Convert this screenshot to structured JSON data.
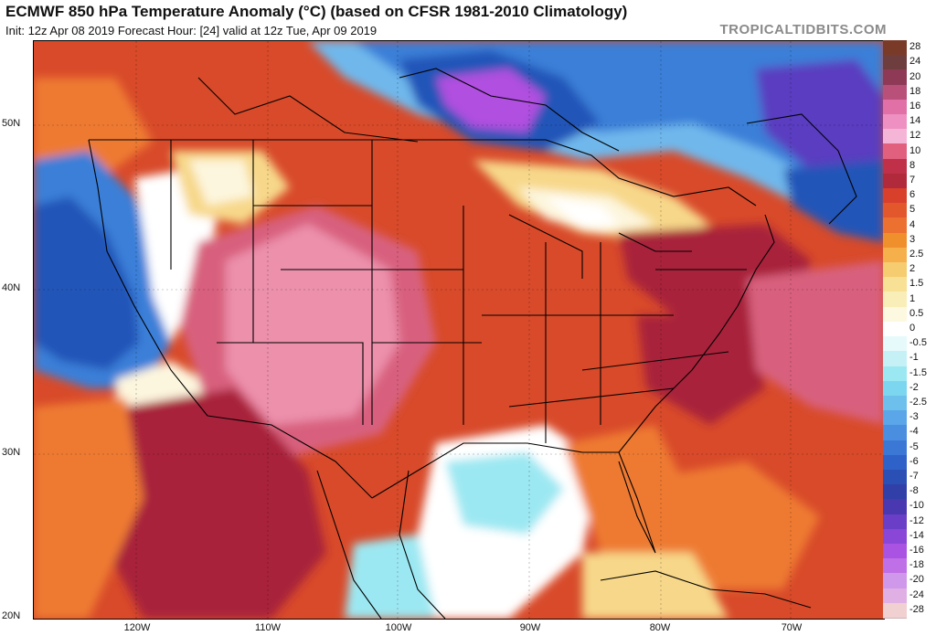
{
  "header": {
    "title": "ECMWF 850 hPa Temperature Anomaly (°C) (based on CFSR 1981-2010 Climatology)",
    "subtitle": "Init: 12z Apr 08 2019   Forecast Hour: [24]   valid at 12z Tue, Apr 09 2019",
    "watermark": "TROPICALTIDBITS.COM"
  },
  "map": {
    "latitude_labels": [
      "50N",
      "40N",
      "30N",
      "20N"
    ],
    "longitude_labels": [
      "120W",
      "110W",
      "100W",
      "90W",
      "80W",
      "70W"
    ],
    "palette": {
      "background_warm": "#d84a2a",
      "deep_red": "#a8203a",
      "hot_pink": "#d8607e",
      "light_pink": "#ec90ac",
      "orange": "#ee7a30",
      "yellow": "#f7d88a",
      "pale": "#fdf6de",
      "white": "#ffffff",
      "light_cyan": "#9ce8f2",
      "light_blue": "#6fb8ec",
      "mid_blue": "#3b7fd8",
      "deep_blue": "#2355b8",
      "purple": "#5a3ec0",
      "violet": "#b050e0",
      "borders": "#000000"
    }
  },
  "colorbar": {
    "labels": [
      "28",
      "24",
      "20",
      "18",
      "16",
      "14",
      "12",
      "10",
      "8",
      "7",
      "6",
      "5",
      "4",
      "3",
      "2.5",
      "2",
      "1.5",
      "1",
      "0.5",
      "0",
      "-0.5",
      "-1",
      "-1.5",
      "-2",
      "-2.5",
      "-3",
      "-4",
      "-5",
      "-6",
      "-7",
      "-8",
      "-10",
      "-12",
      "-14",
      "-16",
      "-18",
      "-20",
      "-24",
      "-28"
    ],
    "colors": [
      "#7a3a28",
      "#6e3e3e",
      "#8e3a56",
      "#b8507a",
      "#e070a6",
      "#ef90c2",
      "#f5b5d6",
      "#e0607e",
      "#c03048",
      "#b02a3c",
      "#d8402c",
      "#e2582c",
      "#ec7030",
      "#f0902c",
      "#f5b04c",
      "#f6cc70",
      "#f8e094",
      "#faeeb8",
      "#fdf8e0",
      "#ffffff",
      "#e6f9fb",
      "#c5f1f6",
      "#9ce8f2",
      "#7cd6f0",
      "#6ec0ec",
      "#5aa6e8",
      "#4a8ee0",
      "#3b78d6",
      "#2f62c8",
      "#2a50b6",
      "#3040a8",
      "#4a38b0",
      "#6a3ec6",
      "#8a46d6",
      "#aa52e2",
      "#c070e6",
      "#d098ea",
      "#e0b0e4",
      "#f0d0d0"
    ]
  }
}
